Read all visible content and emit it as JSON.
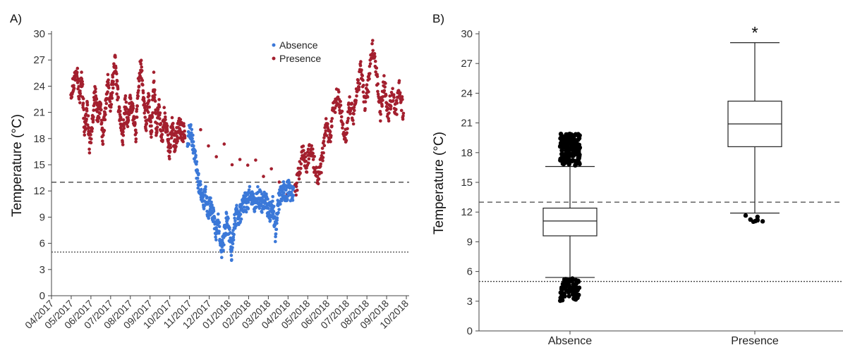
{
  "chart_data": [
    {
      "panel_label": "A)",
      "type": "scatter",
      "ylabel": "Temperature (°C)",
      "ylim": [
        0,
        30
      ],
      "yticks": [
        0,
        3,
        6,
        9,
        12,
        15,
        18,
        21,
        24,
        27,
        30
      ],
      "x_tick_labels": [
        "04/2017",
        "05/2017",
        "06/2017",
        "07/2017",
        "08/2017",
        "09/2017",
        "10/2017",
        "11/2017",
        "12/2017",
        "01/2018",
        "02/2018",
        "03/2018",
        "04/2018",
        "05/2018",
        "06/2018",
        "07/2018",
        "08/2018",
        "09/2018",
        "10/2018"
      ],
      "xlim": [
        "2017-04-01",
        "2018-10-01"
      ],
      "legend": {
        "position": "top-center",
        "entries": [
          "Absence",
          "Presence"
        ]
      },
      "reference_lines": [
        {
          "y": 13,
          "style": "dashed"
        },
        {
          "y": 5,
          "style": "dotted"
        }
      ],
      "series": [
        {
          "name": "Presence",
          "color": "#a31f2e",
          "points": [
            [
              "2017-05-01",
              23.5
            ],
            [
              "2017-05-06",
              24.5
            ],
            [
              "2017-05-10",
              26.5
            ],
            [
              "2017-05-14",
              22.5
            ],
            [
              "2017-05-18",
              25.0
            ],
            [
              "2017-05-22",
              19.0
            ],
            [
              "2017-05-26",
              21.5
            ],
            [
              "2017-05-30",
              17.0
            ],
            [
              "2017-06-03",
              19.5
            ],
            [
              "2017-06-07",
              23.5
            ],
            [
              "2017-06-11",
              20.5
            ],
            [
              "2017-06-15",
              22.0
            ],
            [
              "2017-06-19",
              18.0
            ],
            [
              "2017-06-23",
              21.0
            ],
            [
              "2017-06-27",
              24.5
            ],
            [
              "2017-07-01",
              21.5
            ],
            [
              "2017-07-04",
              24.0
            ],
            [
              "2017-07-08",
              27.0
            ],
            [
              "2017-07-12",
              23.0
            ],
            [
              "2017-07-16",
              20.5
            ],
            [
              "2017-07-20",
              18.0
            ],
            [
              "2017-07-24",
              22.0
            ],
            [
              "2017-07-28",
              19.5
            ],
            [
              "2017-08-01",
              22.5
            ],
            [
              "2017-08-05",
              21.0
            ],
            [
              "2017-08-09",
              18.0
            ],
            [
              "2017-08-13",
              24.0
            ],
            [
              "2017-08-17",
              26.5
            ],
            [
              "2017-08-21",
              22.5
            ],
            [
              "2017-08-25",
              19.5
            ],
            [
              "2017-08-29",
              22.5
            ],
            [
              "2017-09-02",
              18.5
            ],
            [
              "2017-09-06",
              24.5
            ],
            [
              "2017-09-10",
              19.0
            ],
            [
              "2017-09-14",
              22.0
            ],
            [
              "2017-09-18",
              17.5
            ],
            [
              "2017-09-22",
              20.5
            ],
            [
              "2017-09-26",
              19.0
            ],
            [
              "2017-09-30",
              16.5
            ],
            [
              "2017-10-04",
              19.5
            ],
            [
              "2017-10-08",
              17.5
            ],
            [
              "2017-10-12",
              18.5
            ],
            [
              "2017-10-16",
              19.5
            ],
            [
              "2017-10-20",
              18.5
            ],
            [
              "2017-10-24",
              19.0
            ],
            [
              "2018-04-12",
              12.0
            ],
            [
              "2018-04-18",
              14.0
            ],
            [
              "2018-04-24",
              16.5
            ],
            [
              "2018-04-30",
              15.0
            ],
            [
              "2018-05-06",
              17.0
            ],
            [
              "2018-05-12",
              15.0
            ],
            [
              "2018-05-18",
              13.5
            ],
            [
              "2018-05-24",
              15.5
            ],
            [
              "2018-05-30",
              19.5
            ],
            [
              "2018-06-05",
              18.0
            ],
            [
              "2018-06-11",
              21.5
            ],
            [
              "2018-06-17",
              23.0
            ],
            [
              "2018-06-23",
              20.5
            ],
            [
              "2018-06-29",
              18.0
            ],
            [
              "2018-07-05",
              22.0
            ],
            [
              "2018-07-11",
              20.5
            ],
            [
              "2018-07-17",
              23.5
            ],
            [
              "2018-07-23",
              26.0
            ],
            [
              "2018-07-29",
              22.0
            ],
            [
              "2018-08-04",
              24.5
            ],
            [
              "2018-08-10",
              28.5
            ],
            [
              "2018-08-16",
              25.0
            ],
            [
              "2018-08-22",
              21.0
            ],
            [
              "2018-08-28",
              24.5
            ],
            [
              "2018-09-03",
              20.5
            ],
            [
              "2018-09-09",
              23.5
            ],
            [
              "2018-09-15",
              21.0
            ],
            [
              "2018-09-21",
              24.0
            ],
            [
              "2018-09-27",
              20.0
            ]
          ]
        },
        {
          "name": "Absence",
          "color": "#3b78d8",
          "points": [
            [
              "2017-10-28",
              17.5
            ],
            [
              "2017-11-01",
              19.0
            ],
            [
              "2017-11-05",
              17.5
            ],
            [
              "2017-11-09",
              15.5
            ],
            [
              "2017-11-13",
              13.5
            ],
            [
              "2017-11-17",
              12.0
            ],
            [
              "2017-11-21",
              10.5
            ],
            [
              "2017-11-25",
              11.5
            ],
            [
              "2017-11-29",
              9.5
            ],
            [
              "2017-12-03",
              10.5
            ],
            [
              "2017-12-07",
              9.0
            ],
            [
              "2017-12-11",
              7.0
            ],
            [
              "2017-12-15",
              8.5
            ],
            [
              "2017-12-19",
              5.0
            ],
            [
              "2017-12-23",
              6.5
            ],
            [
              "2017-12-27",
              8.5
            ],
            [
              "2017-12-31",
              7.5
            ],
            [
              "2018-01-04",
              5.0
            ],
            [
              "2018-01-08",
              8.0
            ],
            [
              "2018-01-12",
              9.5
            ],
            [
              "2018-01-16",
              9.0
            ],
            [
              "2018-01-20",
              10.0
            ],
            [
              "2018-01-24",
              11.0
            ],
            [
              "2018-01-28",
              10.5
            ],
            [
              "2018-02-01",
              11.5
            ],
            [
              "2018-02-05",
              11.0
            ],
            [
              "2018-02-09",
              10.5
            ],
            [
              "2018-02-13",
              11.5
            ],
            [
              "2018-02-17",
              11.0
            ],
            [
              "2018-02-21",
              10.5
            ],
            [
              "2018-02-25",
              11.0
            ],
            [
              "2018-03-01",
              10.0
            ],
            [
              "2018-03-05",
              9.5
            ],
            [
              "2018-03-09",
              10.5
            ],
            [
              "2018-03-13",
              7.0
            ],
            [
              "2018-03-17",
              10.5
            ],
            [
              "2018-03-21",
              11.5
            ],
            [
              "2018-03-25",
              12.0
            ],
            [
              "2018-03-29",
              11.5
            ],
            [
              "2018-04-02",
              12.5
            ],
            [
              "2018-04-06",
              11.5
            ],
            [
              "2018-04-10",
              12.0
            ]
          ]
        }
      ]
    },
    {
      "panel_label": "B)",
      "type": "box",
      "ylabel": "Temperature (°C)",
      "ylim": [
        0,
        30
      ],
      "yticks": [
        0,
        3,
        6,
        9,
        12,
        15,
        18,
        21,
        24,
        27,
        30
      ],
      "categories": [
        "Absence",
        "Presence"
      ],
      "reference_lines": [
        {
          "y": 13,
          "style": "dashed"
        },
        {
          "y": 5,
          "style": "dotted"
        }
      ],
      "significance_marker": {
        "category": "Presence",
        "text": "*"
      },
      "boxes": [
        {
          "category": "Absence",
          "whisker_low": 5.4,
          "q1": 9.6,
          "median": 11.1,
          "q3": 12.4,
          "whisker_high": 16.6,
          "outliers_high_range": [
            16.7,
            19.9
          ],
          "outliers_low_range": [
            3.0,
            5.3
          ]
        },
        {
          "category": "Presence",
          "whisker_low": 11.9,
          "q1": 18.6,
          "median": 20.9,
          "q3": 23.2,
          "whisker_high": 29.1,
          "outliers_low_range": [
            11.0,
            11.9
          ]
        }
      ]
    }
  ]
}
